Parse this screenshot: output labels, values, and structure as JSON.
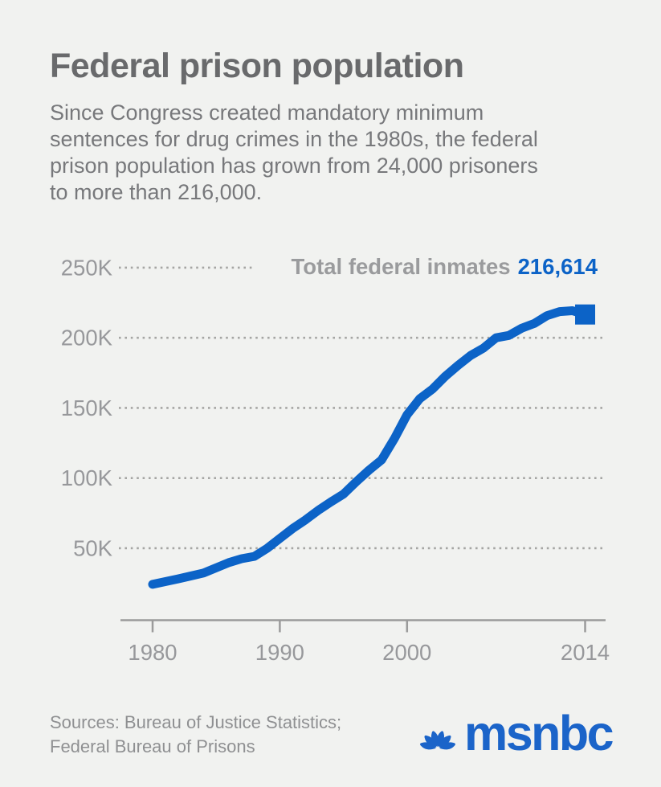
{
  "page": {
    "background": "#f1f2f0"
  },
  "header": {
    "title": "Federal prison population",
    "subtitle": "Since Congress created mandatory minimum\nsentences for drug crimes in the 1980s, the federal\nprison population has grown from 24,000 prisoners\nto more than 216,000."
  },
  "chart_data": {
    "type": "line",
    "title": "Federal prison population",
    "xlabel": "",
    "ylabel": "Federal inmates",
    "xlim": [
      1980,
      2014
    ],
    "ylim": [
      0,
      265000
    ],
    "grid": "horizontal dotted",
    "legend_position": "none",
    "line_color": "#0c63c7",
    "marker": "square-at-last-point",
    "annotation": {
      "label": "Total federal inmates",
      "value": "216,614"
    },
    "x_ticks": [
      {
        "value": 1980,
        "label": "1980"
      },
      {
        "value": 1990,
        "label": "1990"
      },
      {
        "value": 2000,
        "label": "2000"
      },
      {
        "value": 2014,
        "label": "2014"
      }
    ],
    "y_ticks": [
      {
        "value": 50000,
        "label": "50K"
      },
      {
        "value": 100000,
        "label": "100K"
      },
      {
        "value": 150000,
        "label": "150K"
      },
      {
        "value": 200000,
        "label": "200K"
      },
      {
        "value": 250000,
        "label": "250K"
      }
    ],
    "x": [
      1980,
      1981,
      1982,
      1983,
      1984,
      1985,
      1986,
      1987,
      1988,
      1989,
      1990,
      1991,
      1992,
      1993,
      1994,
      1995,
      1996,
      1997,
      1998,
      1999,
      2000,
      2001,
      2002,
      2003,
      2004,
      2005,
      2006,
      2007,
      2008,
      2009,
      2010,
      2011,
      2012,
      2013,
      2014
    ],
    "series": [
      {
        "name": "Total federal inmates",
        "values": [
          24252,
          26195,
          28133,
          30214,
          32317,
          36042,
          39781,
          42525,
          44205,
          49928,
          56989,
          63930,
          70071,
          76846,
          82869,
          88538,
          97331,
          105544,
          112973,
          127972,
          145125,
          156572,
          163436,
          172499,
          180218,
          187394,
          192584,
          200020,
          201668,
          206759,
          210227,
          215768,
          218687,
          219298,
          216614
        ]
      }
    ]
  },
  "footer": {
    "sources": "Sources: Bureau of Justice Statistics;\nFederal Bureau of Prisons",
    "logo_text": "msnbc",
    "logo_color": "#1b64c9"
  }
}
